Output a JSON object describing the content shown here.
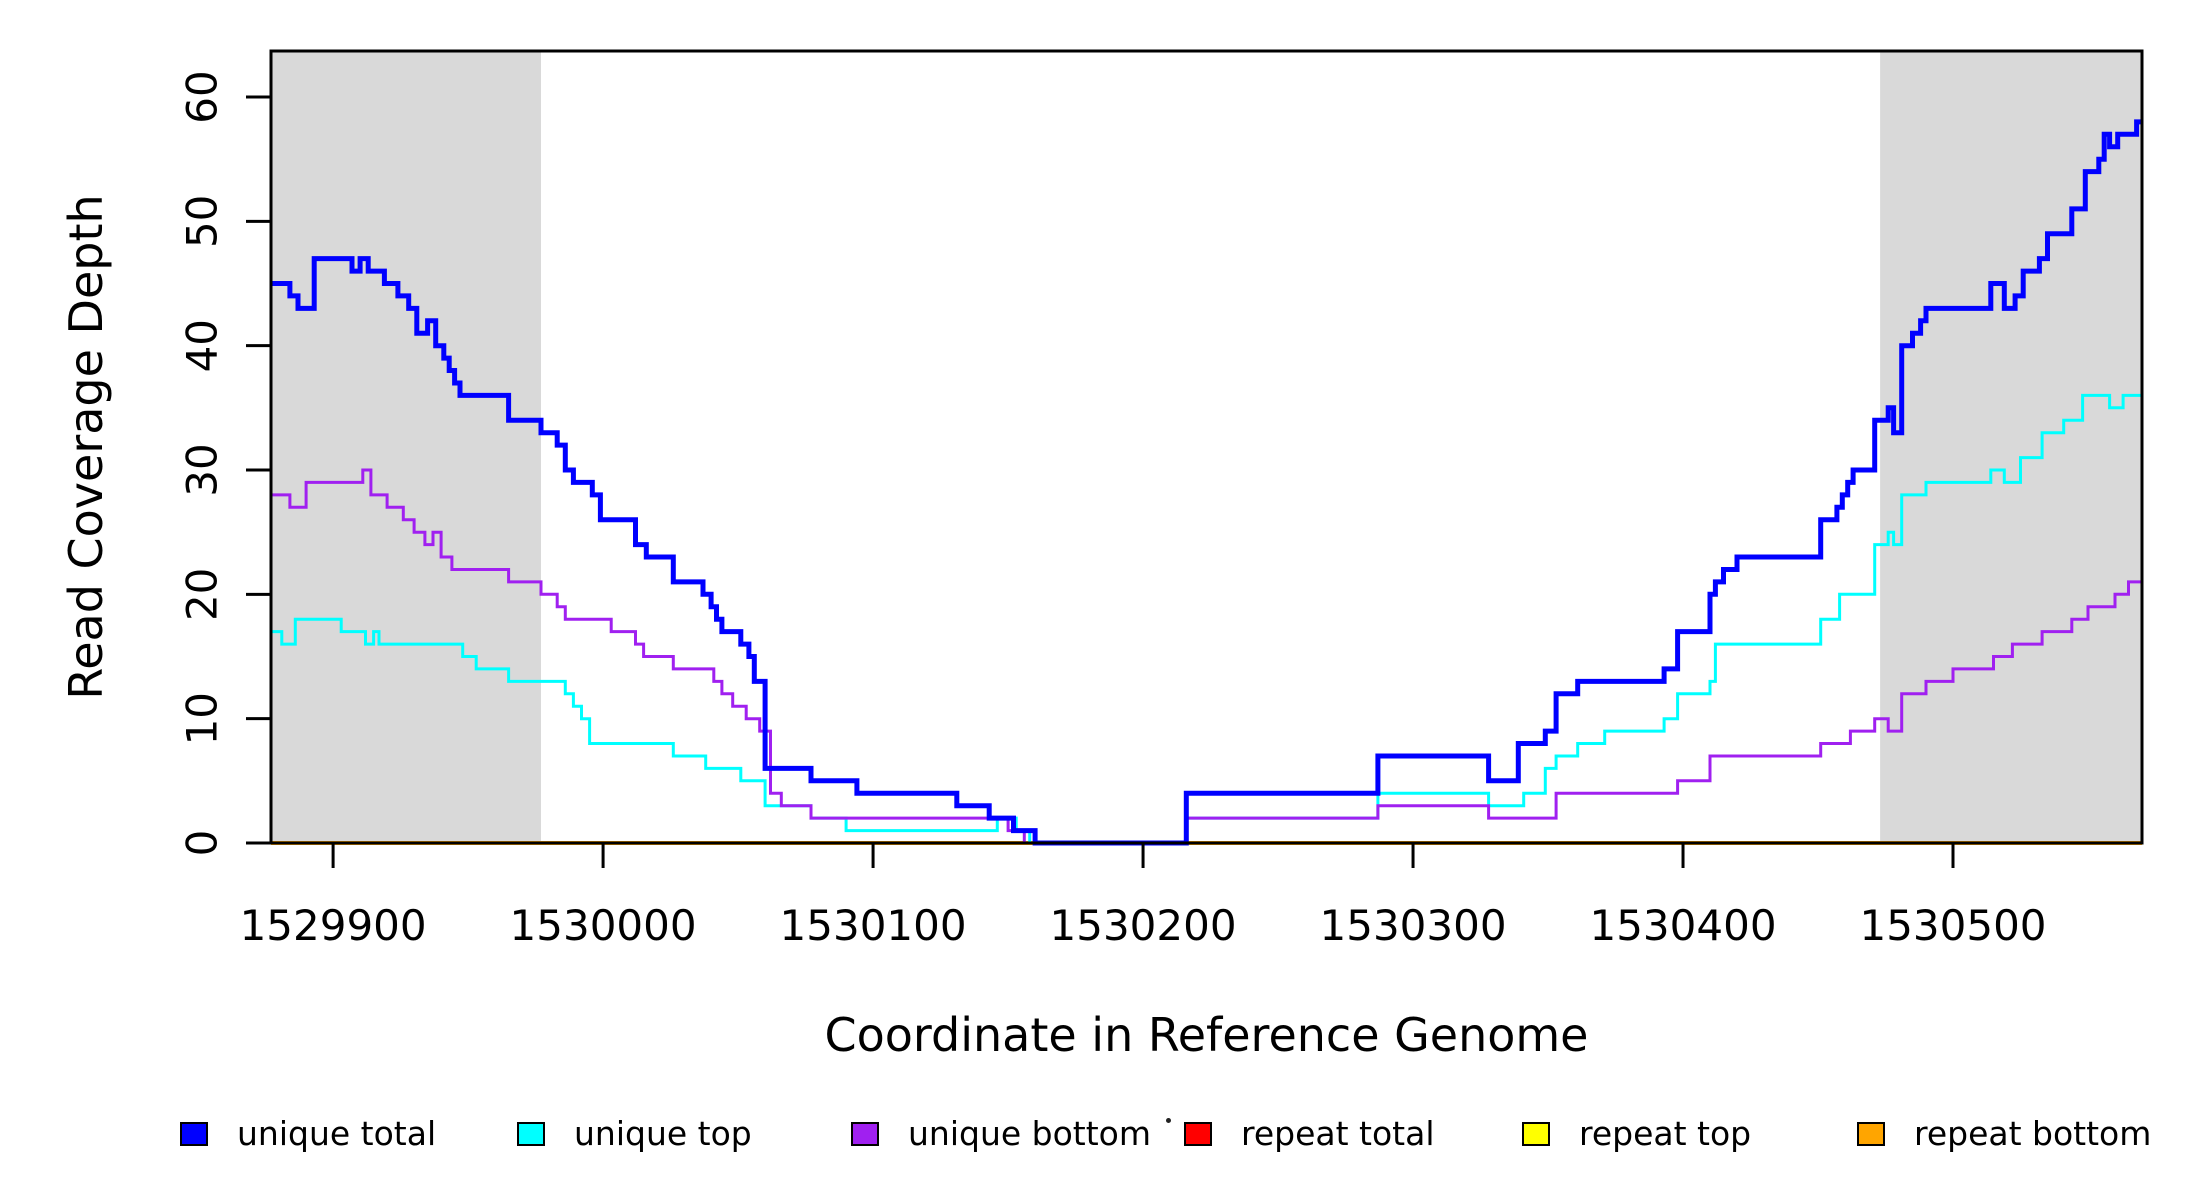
{
  "figure": {
    "background": "#FFFFFF"
  },
  "chart_data": {
    "type": "line",
    "step": true,
    "title": "",
    "xlabel": "Coordinate in Reference Genome",
    "ylabel": "Read Coverage Depth",
    "xlim": [
      1529877,
      1530570
    ],
    "ylim": [
      0,
      63.7
    ],
    "x_ticks": [
      1529900,
      1530000,
      1530100,
      1530200,
      1530300,
      1530400,
      1530500
    ],
    "y_ticks": [
      0,
      10,
      20,
      30,
      40,
      50,
      60
    ],
    "grid": false,
    "legend_position": "bottom",
    "shaded_regions": [
      {
        "x0": 1529877,
        "x1": 1529977,
        "color": "#D9D9D9"
      },
      {
        "x0": 1530473,
        "x1": 1530570,
        "color": "#D9D9D9"
      }
    ],
    "series": [
      {
        "name": "unique total",
        "color": "#0000FF",
        "line_width": 5,
        "points": [
          [
            1529877,
            45
          ],
          [
            1529884,
            44
          ],
          [
            1529887,
            43
          ],
          [
            1529893,
            47
          ],
          [
            1529907,
            46
          ],
          [
            1529910,
            47
          ],
          [
            1529913,
            46
          ],
          [
            1529919,
            45
          ],
          [
            1529924,
            44
          ],
          [
            1529928,
            43
          ],
          [
            1529931,
            41
          ],
          [
            1529935,
            42
          ],
          [
            1529938,
            40
          ],
          [
            1529941,
            39
          ],
          [
            1529943,
            38
          ],
          [
            1529945,
            37
          ],
          [
            1529947,
            36
          ],
          [
            1529965,
            34
          ],
          [
            1529977,
            33
          ],
          [
            1529983,
            32
          ],
          [
            1529986,
            30
          ],
          [
            1529989,
            29
          ],
          [
            1529996,
            28
          ],
          [
            1529999,
            26
          ],
          [
            1530012,
            24
          ],
          [
            1530016,
            23
          ],
          [
            1530026,
            21
          ],
          [
            1530037,
            20
          ],
          [
            1530040,
            19
          ],
          [
            1530042,
            18
          ],
          [
            1530044,
            17
          ],
          [
            1530051,
            16
          ],
          [
            1530054,
            15
          ],
          [
            1530056,
            13
          ],
          [
            1530060,
            6
          ],
          [
            1530077,
            5
          ],
          [
            1530094,
            4
          ],
          [
            1530131,
            3
          ],
          [
            1530143,
            2
          ],
          [
            1530152,
            1
          ],
          [
            1530160,
            0
          ],
          [
            1530216,
            4
          ],
          [
            1530287,
            7
          ],
          [
            1530328,
            5
          ],
          [
            1530339,
            8
          ],
          [
            1530349,
            9
          ],
          [
            1530353,
            12
          ],
          [
            1530361,
            13
          ],
          [
            1530393,
            14
          ],
          [
            1530398,
            17
          ],
          [
            1530410,
            20
          ],
          [
            1530412,
            21
          ],
          [
            1530415,
            22
          ],
          [
            1530420,
            23
          ],
          [
            1530451,
            26
          ],
          [
            1530457,
            27
          ],
          [
            1530459,
            28
          ],
          [
            1530461,
            29
          ],
          [
            1530463,
            30
          ],
          [
            1530471,
            34
          ],
          [
            1530476,
            35
          ],
          [
            1530478,
            33
          ],
          [
            1530481,
            40
          ],
          [
            1530485,
            41
          ],
          [
            1530488,
            42
          ],
          [
            1530490,
            43
          ],
          [
            1530514,
            45
          ],
          [
            1530519,
            43
          ],
          [
            1530523,
            44
          ],
          [
            1530526,
            46
          ],
          [
            1530532,
            47
          ],
          [
            1530535,
            49
          ],
          [
            1530544,
            51
          ],
          [
            1530549,
            54
          ],
          [
            1530554,
            55
          ],
          [
            1530556,
            57
          ],
          [
            1530558,
            56
          ],
          [
            1530561,
            57
          ],
          [
            1530568,
            58
          ]
        ]
      },
      {
        "name": "unique top",
        "color": "#00FFFF",
        "line_width": 3,
        "points": [
          [
            1529877,
            17
          ],
          [
            1529881,
            16
          ],
          [
            1529886,
            18
          ],
          [
            1529903,
            17
          ],
          [
            1529912,
            16
          ],
          [
            1529915,
            17
          ],
          [
            1529917,
            16
          ],
          [
            1529948,
            15
          ],
          [
            1529953,
            14
          ],
          [
            1529965,
            13
          ],
          [
            1529986,
            12
          ],
          [
            1529989,
            11
          ],
          [
            1529992,
            10
          ],
          [
            1529995,
            8
          ],
          [
            1530026,
            7
          ],
          [
            1530038,
            6
          ],
          [
            1530051,
            5
          ],
          [
            1530060,
            3
          ],
          [
            1530077,
            2
          ],
          [
            1530090,
            1
          ],
          [
            1530146,
            2
          ],
          [
            1530153,
            1
          ],
          [
            1530158,
            0
          ],
          [
            1530216,
            2
          ],
          [
            1530287,
            4
          ],
          [
            1530328,
            3
          ],
          [
            1530341,
            4
          ],
          [
            1530349,
            6
          ],
          [
            1530353,
            7
          ],
          [
            1530361,
            8
          ],
          [
            1530371,
            9
          ],
          [
            1530393,
            10
          ],
          [
            1530398,
            12
          ],
          [
            1530410,
            13
          ],
          [
            1530412,
            16
          ],
          [
            1530451,
            18
          ],
          [
            1530458,
            20
          ],
          [
            1530471,
            24
          ],
          [
            1530476,
            25
          ],
          [
            1530478,
            24
          ],
          [
            1530481,
            28
          ],
          [
            1530490,
            29
          ],
          [
            1530514,
            30
          ],
          [
            1530519,
            29
          ],
          [
            1530525,
            31
          ],
          [
            1530533,
            33
          ],
          [
            1530541,
            34
          ],
          [
            1530548,
            36
          ],
          [
            1530558,
            35
          ],
          [
            1530563,
            36
          ]
        ]
      },
      {
        "name": "unique bottom",
        "color": "#A020F0",
        "line_width": 3,
        "points": [
          [
            1529877,
            28
          ],
          [
            1529884,
            27
          ],
          [
            1529890,
            29
          ],
          [
            1529911,
            30
          ],
          [
            1529914,
            28
          ],
          [
            1529920,
            27
          ],
          [
            1529926,
            26
          ],
          [
            1529930,
            25
          ],
          [
            1529934,
            24
          ],
          [
            1529937,
            25
          ],
          [
            1529940,
            23
          ],
          [
            1529944,
            22
          ],
          [
            1529965,
            21
          ],
          [
            1529977,
            20
          ],
          [
            1529983,
            19
          ],
          [
            1529986,
            18
          ],
          [
            1530003,
            17
          ],
          [
            1530012,
            16
          ],
          [
            1530015,
            15
          ],
          [
            1530026,
            14
          ],
          [
            1530041,
            13
          ],
          [
            1530044,
            12
          ],
          [
            1530048,
            11
          ],
          [
            1530053,
            10
          ],
          [
            1530058,
            9
          ],
          [
            1530062,
            4
          ],
          [
            1530066,
            3
          ],
          [
            1530077,
            2
          ],
          [
            1530150,
            1
          ],
          [
            1530156,
            0
          ],
          [
            1530216,
            2
          ],
          [
            1530287,
            3
          ],
          [
            1530328,
            2
          ],
          [
            1530353,
            4
          ],
          [
            1530398,
            5
          ],
          [
            1530410,
            7
          ],
          [
            1530451,
            8
          ],
          [
            1530462,
            9
          ],
          [
            1530471,
            10
          ],
          [
            1530476,
            9
          ],
          [
            1530481,
            12
          ],
          [
            1530490,
            13
          ],
          [
            1530500,
            14
          ],
          [
            1530515,
            15
          ],
          [
            1530522,
            16
          ],
          [
            1530533,
            17
          ],
          [
            1530544,
            18
          ],
          [
            1530550,
            19
          ],
          [
            1530560,
            20
          ],
          [
            1530565,
            21
          ]
        ]
      },
      {
        "name": "repeat total",
        "color": "#FF0000",
        "line_width": 3,
        "points": [
          [
            1529877,
            0
          ],
          [
            1530570,
            0
          ]
        ]
      },
      {
        "name": "repeat top",
        "color": "#FFFF00",
        "line_width": 3,
        "points": [
          [
            1529877,
            0
          ],
          [
            1530570,
            0
          ]
        ]
      },
      {
        "name": "repeat bottom",
        "color": "#FFA500",
        "line_width": 4,
        "points": [
          [
            1529877,
            0
          ],
          [
            1530570,
            0
          ]
        ]
      }
    ]
  },
  "legend": {
    "items": [
      {
        "label": "unique total",
        "color": "#0000FF"
      },
      {
        "label": "unique top",
        "color": "#00FFFF"
      },
      {
        "label": "unique bottom",
        "color": "#A020F0"
      },
      {
        "label": "repeat total",
        "color": "#FF0000"
      },
      {
        "label": "repeat top",
        "color": "#FFFF00"
      },
      {
        "label": "repeat bottom",
        "color": "#FFA500"
      }
    ]
  }
}
